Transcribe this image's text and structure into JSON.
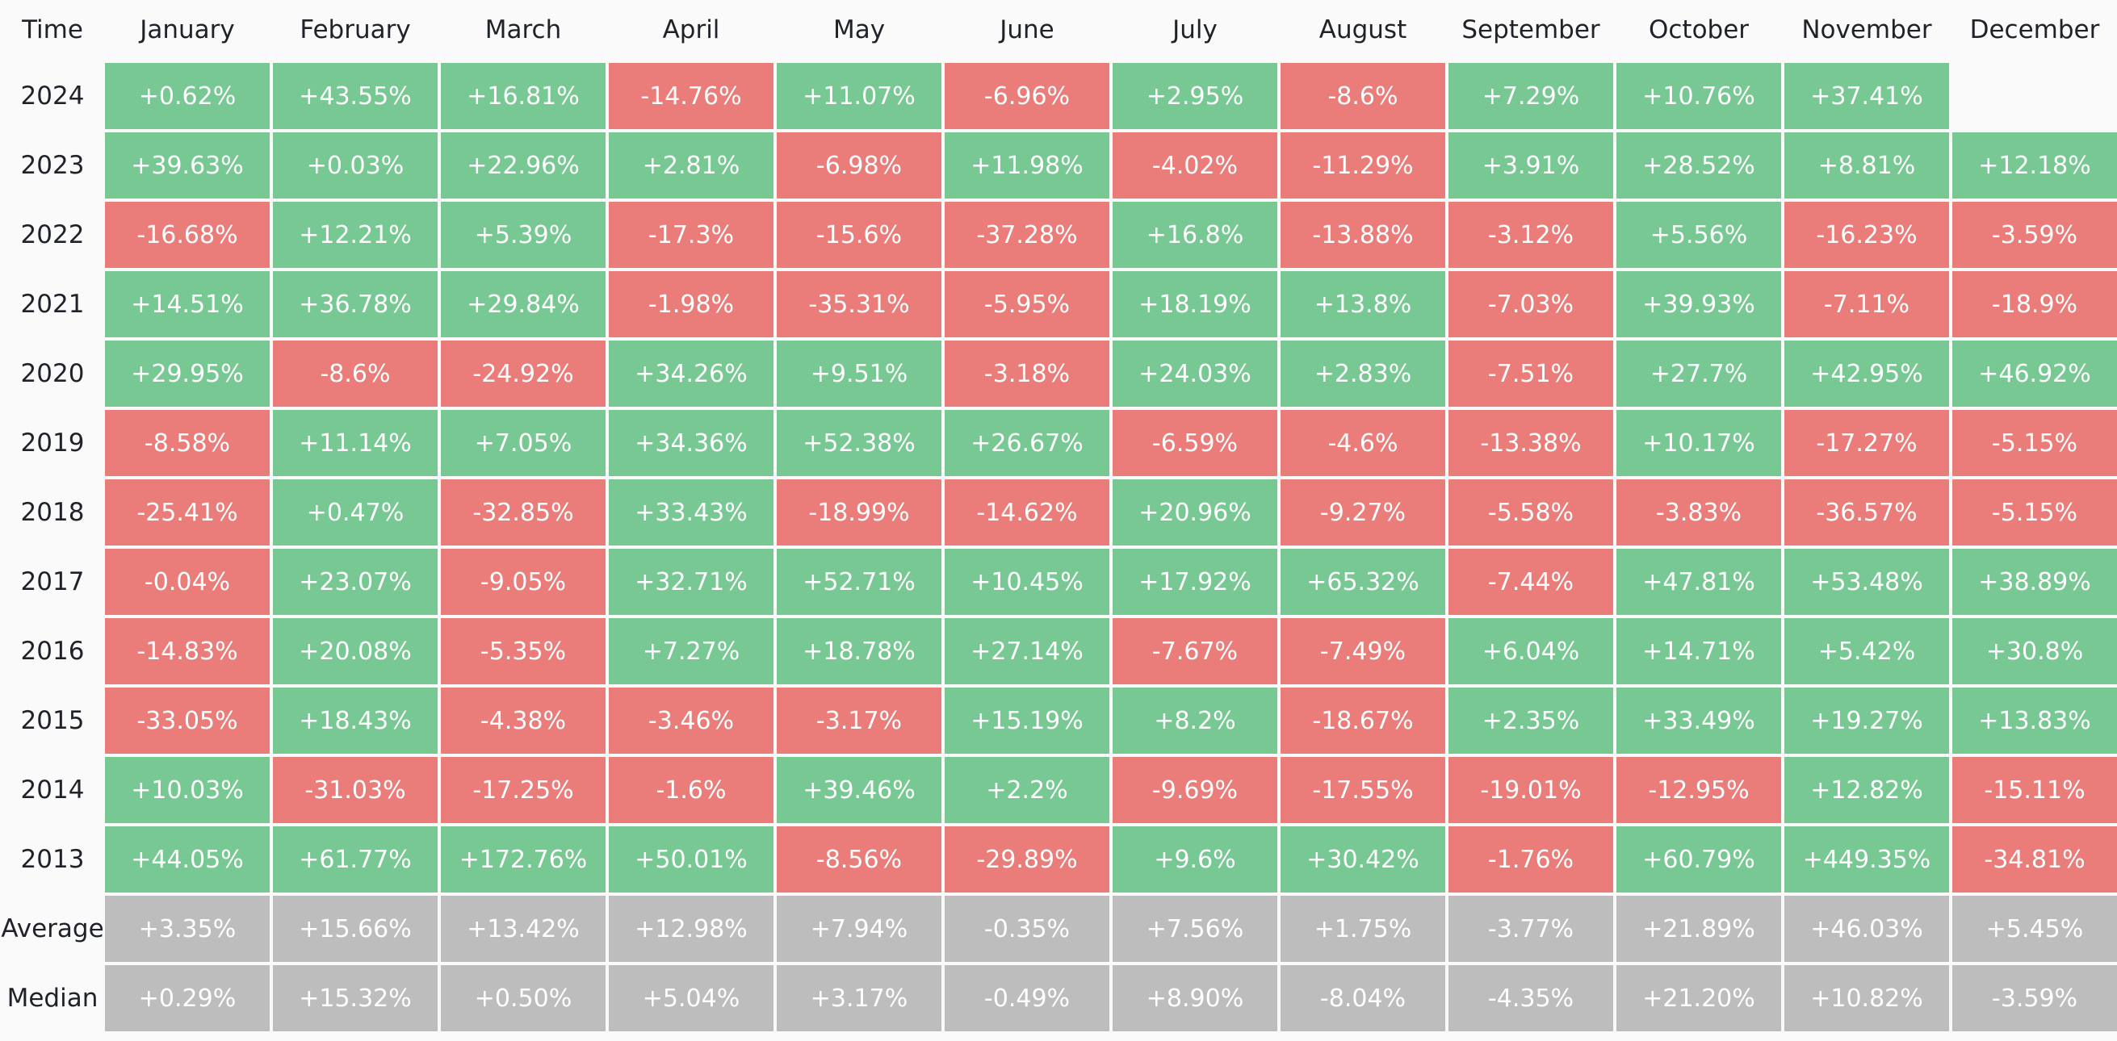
{
  "chart_data": {
    "type": "heatmap",
    "corner_label": "Time",
    "columns": [
      "January",
      "February",
      "March",
      "April",
      "May",
      "June",
      "July",
      "August",
      "September",
      "October",
      "November",
      "December"
    ],
    "rows": [
      {
        "label": "2024",
        "kind": "year",
        "values": [
          "+0.62%",
          "+43.55%",
          "+16.81%",
          "-14.76%",
          "+11.07%",
          "-6.96%",
          "+2.95%",
          "-8.6%",
          "+7.29%",
          "+10.76%",
          "+37.41%",
          ""
        ]
      },
      {
        "label": "2023",
        "kind": "year",
        "values": [
          "+39.63%",
          "+0.03%",
          "+22.96%",
          "+2.81%",
          "-6.98%",
          "+11.98%",
          "-4.02%",
          "-11.29%",
          "+3.91%",
          "+28.52%",
          "+8.81%",
          "+12.18%"
        ]
      },
      {
        "label": "2022",
        "kind": "year",
        "values": [
          "-16.68%",
          "+12.21%",
          "+5.39%",
          "-17.3%",
          "-15.6%",
          "-37.28%",
          "+16.8%",
          "-13.88%",
          "-3.12%",
          "+5.56%",
          "-16.23%",
          "-3.59%"
        ]
      },
      {
        "label": "2021",
        "kind": "year",
        "values": [
          "+14.51%",
          "+36.78%",
          "+29.84%",
          "-1.98%",
          "-35.31%",
          "-5.95%",
          "+18.19%",
          "+13.8%",
          "-7.03%",
          "+39.93%",
          "-7.11%",
          "-18.9%"
        ]
      },
      {
        "label": "2020",
        "kind": "year",
        "values": [
          "+29.95%",
          "-8.6%",
          "-24.92%",
          "+34.26%",
          "+9.51%",
          "-3.18%",
          "+24.03%",
          "+2.83%",
          "-7.51%",
          "+27.7%",
          "+42.95%",
          "+46.92%"
        ]
      },
      {
        "label": "2019",
        "kind": "year",
        "values": [
          "-8.58%",
          "+11.14%",
          "+7.05%",
          "+34.36%",
          "+52.38%",
          "+26.67%",
          "-6.59%",
          "-4.6%",
          "-13.38%",
          "+10.17%",
          "-17.27%",
          "-5.15%"
        ]
      },
      {
        "label": "2018",
        "kind": "year",
        "values": [
          "-25.41%",
          "+0.47%",
          "-32.85%",
          "+33.43%",
          "-18.99%",
          "-14.62%",
          "+20.96%",
          "-9.27%",
          "-5.58%",
          "-3.83%",
          "-36.57%",
          "-5.15%"
        ]
      },
      {
        "label": "2017",
        "kind": "year",
        "values": [
          "-0.04%",
          "+23.07%",
          "-9.05%",
          "+32.71%",
          "+52.71%",
          "+10.45%",
          "+17.92%",
          "+65.32%",
          "-7.44%",
          "+47.81%",
          "+53.48%",
          "+38.89%"
        ]
      },
      {
        "label": "2016",
        "kind": "year",
        "values": [
          "-14.83%",
          "+20.08%",
          "-5.35%",
          "+7.27%",
          "+18.78%",
          "+27.14%",
          "-7.67%",
          "-7.49%",
          "+6.04%",
          "+14.71%",
          "+5.42%",
          "+30.8%"
        ]
      },
      {
        "label": "2015",
        "kind": "year",
        "values": [
          "-33.05%",
          "+18.43%",
          "-4.38%",
          "-3.46%",
          "-3.17%",
          "+15.19%",
          "+8.2%",
          "-18.67%",
          "+2.35%",
          "+33.49%",
          "+19.27%",
          "+13.83%"
        ]
      },
      {
        "label": "2014",
        "kind": "year",
        "values": [
          "+10.03%",
          "-31.03%",
          "-17.25%",
          "-1.6%",
          "+39.46%",
          "+2.2%",
          "-9.69%",
          "-17.55%",
          "-19.01%",
          "-12.95%",
          "+12.82%",
          "-15.11%"
        ]
      },
      {
        "label": "2013",
        "kind": "year",
        "values": [
          "+44.05%",
          "+61.77%",
          "+172.76%",
          "+50.01%",
          "-8.56%",
          "-29.89%",
          "+9.6%",
          "+30.42%",
          "-1.76%",
          "+60.79%",
          "+449.35%",
          "-34.81%"
        ]
      },
      {
        "label": "Average",
        "kind": "summary",
        "values": [
          "+3.35%",
          "+15.66%",
          "+13.42%",
          "+12.98%",
          "+7.94%",
          "-0.35%",
          "+7.56%",
          "+1.75%",
          "-3.77%",
          "+21.89%",
          "+46.03%",
          "+5.45%"
        ]
      },
      {
        "label": "Median",
        "kind": "summary",
        "values": [
          "+0.29%",
          "+15.32%",
          "+0.50%",
          "+5.04%",
          "+3.17%",
          "-0.49%",
          "+8.90%",
          "-8.04%",
          "-4.35%",
          "+21.20%",
          "+10.82%",
          "-3.59%"
        ]
      }
    ],
    "colors": {
      "positive": "#77c893",
      "negative": "#ea7c7a",
      "summary": "#bdbdbd",
      "background": "#fafafa",
      "text_light": "#ffffff",
      "text_dark": "#1f2329"
    }
  }
}
